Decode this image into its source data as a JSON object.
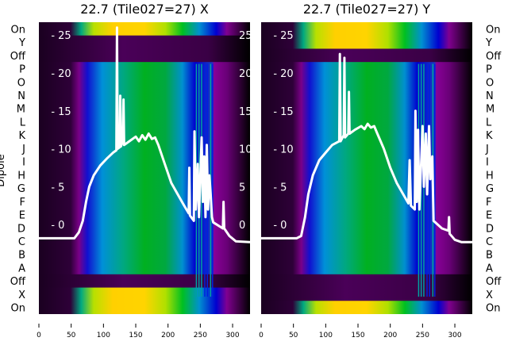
{
  "chart_data": {
    "type": "heatmap",
    "ylabel": "Dipole",
    "xlim": [
      0,
      327
    ],
    "ylim": [
      -11.8,
      26.7
    ],
    "xticks": [
      0,
      50,
      100,
      150,
      200,
      250,
      300
    ],
    "yticks": [
      0,
      5,
      10,
      15,
      20,
      25
    ],
    "row_labels": [
      "On",
      "Y",
      "Off",
      "P",
      "O",
      "N",
      "M",
      "L",
      "K",
      "J",
      "I",
      "H",
      "G",
      "F",
      "E",
      "D",
      "C",
      "B",
      "A",
      "Off",
      "X",
      "On"
    ],
    "colors": {
      "line": "#ffffff"
    },
    "panels": [
      {
        "title": "22.7 (Tile027=27) X",
        "label_side": "left",
        "row_kinds": [
          "bright",
          "dark",
          "dark",
          "n",
          "n",
          "n",
          "n",
          "n",
          "n",
          "n",
          "n",
          "n",
          "n",
          "n",
          "n",
          "n",
          "n",
          "n",
          "n",
          "dark",
          "bright",
          "bright"
        ],
        "curve": [
          [
            0,
            -1.8
          ],
          [
            55,
            -1.8
          ],
          [
            62,
            -1
          ],
          [
            68,
            0.5
          ],
          [
            73,
            3
          ],
          [
            78,
            5
          ],
          [
            85,
            6.5
          ],
          [
            95,
            7.8
          ],
          [
            105,
            8.7
          ],
          [
            115,
            9.5
          ],
          [
            120,
            9.8
          ],
          [
            121,
            26
          ],
          [
            122,
            10
          ],
          [
            125,
            10.2
          ],
          [
            126,
            17
          ],
          [
            127,
            10.3
          ],
          [
            130,
            11
          ],
          [
            131,
            16.5
          ],
          [
            132,
            10.5
          ],
          [
            140,
            11
          ],
          [
            150,
            11.6
          ],
          [
            155,
            11
          ],
          [
            160,
            11.8
          ],
          [
            165,
            11.2
          ],
          [
            170,
            12
          ],
          [
            175,
            11.3
          ],
          [
            180,
            11.5
          ],
          [
            185,
            10.5
          ],
          [
            195,
            8
          ],
          [
            205,
            5.5
          ],
          [
            215,
            4
          ],
          [
            225,
            2.5
          ],
          [
            232,
            1.5
          ],
          [
            233,
            7.5
          ],
          [
            234,
            1.2
          ],
          [
            240,
            0.5
          ],
          [
            241,
            12.3
          ],
          [
            243,
            2
          ],
          [
            246,
            8
          ],
          [
            248,
            1
          ],
          [
            252,
            11.5
          ],
          [
            254,
            3
          ],
          [
            256,
            9
          ],
          [
            258,
            1
          ],
          [
            260,
            10.5
          ],
          [
            262,
            2
          ],
          [
            264,
            6.5
          ],
          [
            266,
            4
          ],
          [
            268,
            1
          ],
          [
            270,
            0.3
          ],
          [
            285,
            -0.5
          ],
          [
            286,
            3
          ],
          [
            287,
            -0.5
          ],
          [
            295,
            -1.5
          ],
          [
            305,
            -2.2
          ],
          [
            327,
            -2.3
          ]
        ]
      },
      {
        "title": "22.7 (Tile027=27) Y",
        "label_side": "right",
        "row_kinds": [
          "bright",
          "bright",
          "dark",
          "n",
          "n",
          "n",
          "n",
          "n",
          "n",
          "n",
          "n",
          "n",
          "n",
          "n",
          "n",
          "n",
          "n",
          "n",
          "n",
          "dark",
          "dark",
          "bright"
        ],
        "curve": [
          [
            0,
            -1.8
          ],
          [
            55,
            -1.8
          ],
          [
            62,
            -1.5
          ],
          [
            68,
            1
          ],
          [
            73,
            4
          ],
          [
            80,
            6.5
          ],
          [
            90,
            8.5
          ],
          [
            100,
            9.5
          ],
          [
            110,
            10.5
          ],
          [
            121,
            11
          ],
          [
            122,
            22.5
          ],
          [
            123,
            11
          ],
          [
            128,
            11.8
          ],
          [
            129,
            22
          ],
          [
            130,
            11.5
          ],
          [
            135,
            12
          ],
          [
            136,
            17.5
          ],
          [
            137,
            12
          ],
          [
            145,
            12.5
          ],
          [
            155,
            13
          ],
          [
            160,
            12.6
          ],
          [
            165,
            13.3
          ],
          [
            170,
            12.8
          ],
          [
            175,
            13
          ],
          [
            180,
            12
          ],
          [
            190,
            10
          ],
          [
            200,
            7.5
          ],
          [
            210,
            5.5
          ],
          [
            220,
            4
          ],
          [
            228,
            2.8
          ],
          [
            230,
            8.5
          ],
          [
            232,
            2.5
          ],
          [
            238,
            2
          ],
          [
            239,
            15
          ],
          [
            241,
            3
          ],
          [
            243,
            12.5
          ],
          [
            245,
            2
          ],
          [
            250,
            13
          ],
          [
            252,
            5
          ],
          [
            255,
            12
          ],
          [
            257,
            4
          ],
          [
            260,
            13
          ],
          [
            262,
            6
          ],
          [
            265,
            9
          ],
          [
            267,
            0.5
          ],
          [
            280,
            -0.5
          ],
          [
            290,
            -0.8
          ],
          [
            291,
            1
          ],
          [
            292,
            -1.2
          ],
          [
            300,
            -2
          ],
          [
            310,
            -2.3
          ],
          [
            327,
            -2.3
          ]
        ]
      }
    ]
  }
}
